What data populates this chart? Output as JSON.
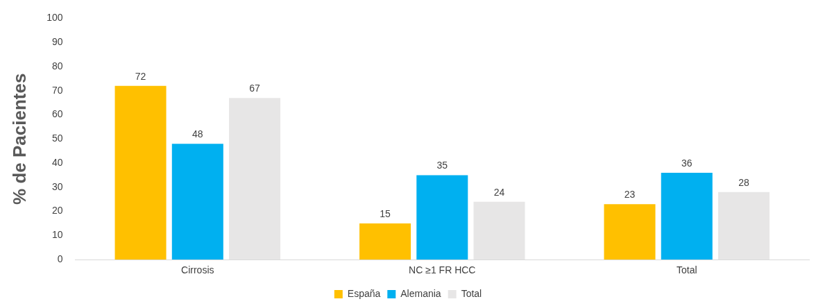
{
  "chart_data": {
    "type": "bar",
    "ylabel": "% de Pacientes",
    "categories": [
      "Cirrosis",
      "NC ≥1 FR HCC",
      "Total"
    ],
    "series": [
      {
        "name": "España",
        "color": "#ffc000",
        "values": [
          72,
          15,
          23
        ]
      },
      {
        "name": "Alemania",
        "color": "#00b0f0",
        "values": [
          48,
          35,
          36
        ]
      },
      {
        "name": "Total",
        "color": "#e7e6e6",
        "values": [
          67,
          24,
          28
        ]
      }
    ],
    "ylim": [
      0,
      100
    ],
    "yticks": [
      0,
      10,
      20,
      30,
      40,
      50,
      60,
      70,
      80,
      90,
      100
    ],
    "grid": false,
    "legend": "bottom",
    "data_labels": true
  }
}
